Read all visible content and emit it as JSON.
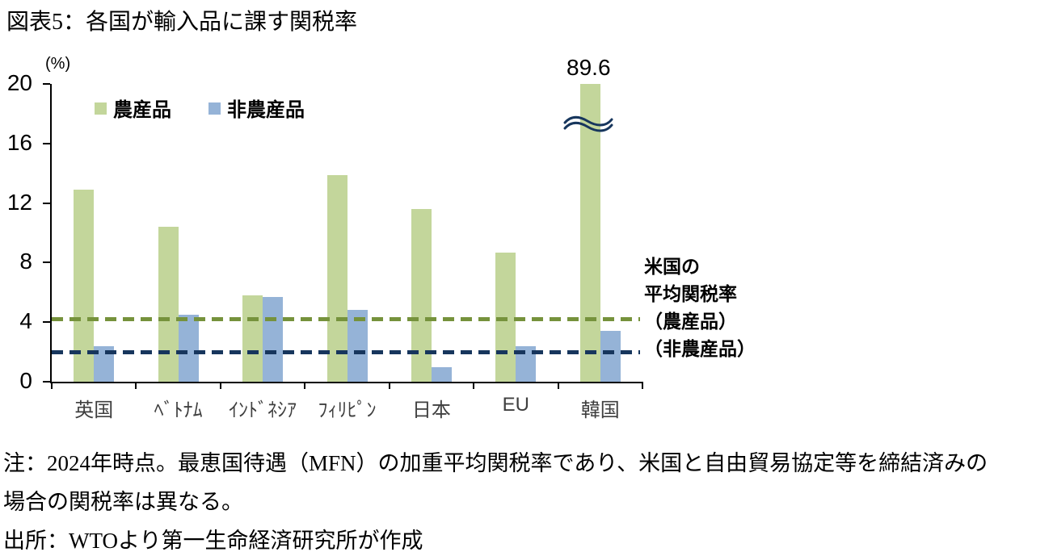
{
  "title": "図表5：各国が輸入品に課す関税率",
  "chart_data": {
    "type": "bar",
    "unit_label": "(%)",
    "categories": [
      "英国",
      "ﾍﾞﾄﾅﾑ",
      "ｲﾝﾄﾞﾈｼｱ",
      "ﾌｨﾘﾋﾟﾝ",
      "日本",
      "EU",
      "韓国"
    ],
    "series": [
      {
        "key": "agri",
        "name": "農産品",
        "color": "#c3d69b",
        "values": [
          12.9,
          10.4,
          5.8,
          13.9,
          11.6,
          8.7,
          89.6
        ]
      },
      {
        "key": "nonagri",
        "name": "非農産品",
        "color": "#95b3d7",
        "values": [
          2.4,
          4.5,
          5.7,
          4.8,
          1.0,
          2.4,
          3.4
        ]
      }
    ],
    "ylim": [
      0,
      20
    ],
    "yticks": [
      0,
      4,
      8,
      12,
      16,
      20
    ],
    "grid": "off",
    "legend_position": "top-left-inside",
    "axis_break": {
      "category": "韓国",
      "series": "農産品",
      "true_value": 89.6,
      "label": "89.6"
    },
    "reference_lines": [
      {
        "key": "us-agri",
        "label": "米国の平均関税率（農産品）",
        "value": 4.2,
        "color": "#76923c",
        "style": "dashed"
      },
      {
        "key": "us-nonagri",
        "label": "米国の平均関税率（非農産品）",
        "value": 2.0,
        "color": "#17365d",
        "style": "dashed"
      }
    ],
    "annotation": {
      "lines": [
        "米国の",
        "平均関税率",
        "（農産品）",
        "（非農産品）"
      ]
    }
  },
  "notes": {
    "line1": "注：2024年時点。最恵国待遇（MFN）の加重平均関税率であり、米国と自由貿易協定等を締結済みの",
    "line2": "場合の関税率は異なる。",
    "line3": "出所：WTOより第一生命経済研究所が作成"
  }
}
